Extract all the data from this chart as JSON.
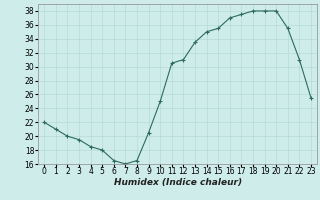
{
  "x": [
    0,
    1,
    2,
    3,
    4,
    5,
    6,
    7,
    8,
    9,
    10,
    11,
    12,
    13,
    14,
    15,
    16,
    17,
    18,
    19,
    20,
    21,
    22,
    23
  ],
  "y": [
    22,
    21,
    20,
    19.5,
    18.5,
    18,
    16.5,
    16,
    16.5,
    20.5,
    25,
    30.5,
    31,
    33.5,
    35,
    35.5,
    37,
    37.5,
    38,
    38,
    38,
    35.5,
    31,
    25.5
  ],
  "xlabel": "Humidex (Indice chaleur)",
  "ylabel": "",
  "ylim": [
    16,
    39
  ],
  "xlim": [
    -0.5,
    23.5
  ],
  "yticks": [
    16,
    18,
    20,
    22,
    24,
    26,
    28,
    30,
    32,
    34,
    36,
    38
  ],
  "xticks": [
    0,
    1,
    2,
    3,
    4,
    5,
    6,
    7,
    8,
    9,
    10,
    11,
    12,
    13,
    14,
    15,
    16,
    17,
    18,
    19,
    20,
    21,
    22,
    23
  ],
  "line_color": "#2d6b5e",
  "marker": "+",
  "bg_color": "#ceecea",
  "grid_color": "#b8dbd8",
  "xlabel_fontsize": 6.5,
  "tick_fontsize": 5.5
}
